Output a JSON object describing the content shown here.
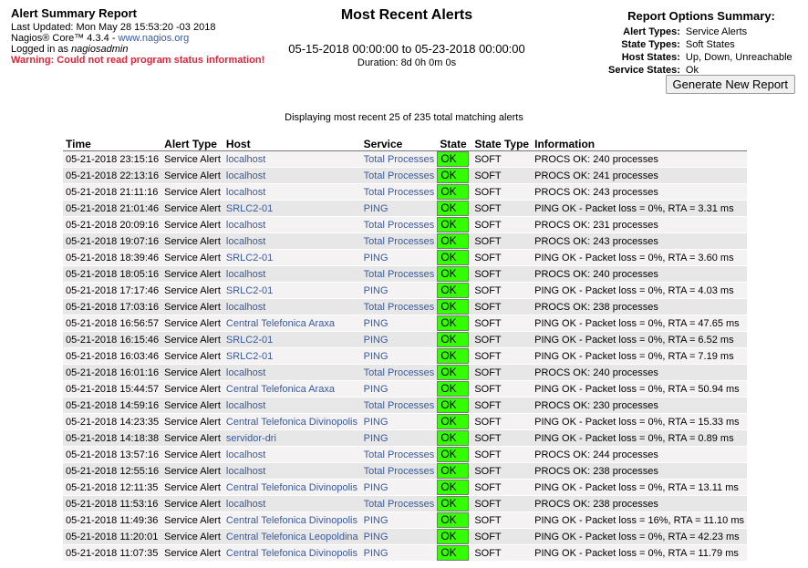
{
  "info": {
    "title": "Alert Summary Report",
    "last_updated": "Last Updated: Mon May 28 15:53:20 -03 2018",
    "product_prefix": "Nagios® Core™ 4.3.4 - ",
    "product_link": "www.nagios.org",
    "logged_prefix": "Logged in as ",
    "logged_user": "nagiosadmin",
    "warning": "Warning: Could not read program status information!"
  },
  "report": {
    "title": "Most Recent Alerts",
    "date_range": "05-15-2018 00:00:00 to 05-23-2018 00:00:00",
    "duration": "Duration: 8d 0h 0m 0s"
  },
  "options": {
    "title": "Report Options Summary:",
    "rows": [
      {
        "key": "Alert Types:",
        "value": "Service Alerts"
      },
      {
        "key": "State Types:",
        "value": "Soft States"
      },
      {
        "key": "Host States:",
        "value": "Up, Down, Unreachable"
      },
      {
        "key": "Service States:",
        "value": "Ok"
      }
    ],
    "button_label": "Generate New Report"
  },
  "summary_text": "Displaying most recent 25 of 235 total matching alerts",
  "colors": {
    "ok": "#33ff00",
    "link": "#3a5a9a",
    "warning": "#e0243a"
  },
  "table": {
    "headers": [
      "Time",
      "Alert Type",
      "Host",
      "Service",
      "State",
      "State Type",
      "Information"
    ],
    "rows": [
      {
        "time": "05-21-2018 23:15:16",
        "type": "Service Alert",
        "host": "localhost",
        "service": "Total Processes",
        "state": "OK",
        "state_type": "SOFT",
        "info": "PROCS OK: 240 processes"
      },
      {
        "time": "05-21-2018 22:13:16",
        "type": "Service Alert",
        "host": "localhost",
        "service": "Total Processes",
        "state": "OK",
        "state_type": "SOFT",
        "info": "PROCS OK: 241 processes"
      },
      {
        "time": "05-21-2018 21:11:16",
        "type": "Service Alert",
        "host": "localhost",
        "service": "Total Processes",
        "state": "OK",
        "state_type": "SOFT",
        "info": "PROCS OK: 243 processes"
      },
      {
        "time": "05-21-2018 21:01:46",
        "type": "Service Alert",
        "host": "SRLC2-01",
        "service": "PING",
        "state": "OK",
        "state_type": "SOFT",
        "info": "PING OK - Packet loss = 0%, RTA = 3.31 ms"
      },
      {
        "time": "05-21-2018 20:09:16",
        "type": "Service Alert",
        "host": "localhost",
        "service": "Total Processes",
        "state": "OK",
        "state_type": "SOFT",
        "info": "PROCS OK: 231 processes"
      },
      {
        "time": "05-21-2018 19:07:16",
        "type": "Service Alert",
        "host": "localhost",
        "service": "Total Processes",
        "state": "OK",
        "state_type": "SOFT",
        "info": "PROCS OK: 243 processes"
      },
      {
        "time": "05-21-2018 18:39:46",
        "type": "Service Alert",
        "host": "SRLC2-01",
        "service": "PING",
        "state": "OK",
        "state_type": "SOFT",
        "info": "PING OK - Packet loss = 0%, RTA = 3.60 ms"
      },
      {
        "time": "05-21-2018 18:05:16",
        "type": "Service Alert",
        "host": "localhost",
        "service": "Total Processes",
        "state": "OK",
        "state_type": "SOFT",
        "info": "PROCS OK: 240 processes"
      },
      {
        "time": "05-21-2018 17:17:46",
        "type": "Service Alert",
        "host": "SRLC2-01",
        "service": "PING",
        "state": "OK",
        "state_type": "SOFT",
        "info": "PING OK - Packet loss = 0%, RTA = 4.03 ms"
      },
      {
        "time": "05-21-2018 17:03:16",
        "type": "Service Alert",
        "host": "localhost",
        "service": "Total Processes",
        "state": "OK",
        "state_type": "SOFT",
        "info": "PROCS OK: 238 processes"
      },
      {
        "time": "05-21-2018 16:56:57",
        "type": "Service Alert",
        "host": "Central Telefonica Araxa",
        "service": "PING",
        "state": "OK",
        "state_type": "SOFT",
        "info": "PING OK - Packet loss = 0%, RTA = 47.65 ms"
      },
      {
        "time": "05-21-2018 16:15:46",
        "type": "Service Alert",
        "host": "SRLC2-01",
        "service": "PING",
        "state": "OK",
        "state_type": "SOFT",
        "info": "PING OK - Packet loss = 0%, RTA = 6.52 ms"
      },
      {
        "time": "05-21-2018 16:03:46",
        "type": "Service Alert",
        "host": "SRLC2-01",
        "service": "PING",
        "state": "OK",
        "state_type": "SOFT",
        "info": "PING OK - Packet loss = 0%, RTA = 7.19 ms"
      },
      {
        "time": "05-21-2018 16:01:16",
        "type": "Service Alert",
        "host": "localhost",
        "service": "Total Processes",
        "state": "OK",
        "state_type": "SOFT",
        "info": "PROCS OK: 240 processes"
      },
      {
        "time": "05-21-2018 15:44:57",
        "type": "Service Alert",
        "host": "Central Telefonica Araxa",
        "service": "PING",
        "state": "OK",
        "state_type": "SOFT",
        "info": "PING OK - Packet loss = 0%, RTA = 50.94 ms"
      },
      {
        "time": "05-21-2018 14:59:16",
        "type": "Service Alert",
        "host": "localhost",
        "service": "Total Processes",
        "state": "OK",
        "state_type": "SOFT",
        "info": "PROCS OK: 230 processes"
      },
      {
        "time": "05-21-2018 14:23:35",
        "type": "Service Alert",
        "host": "Central Telefonica Divinopolis",
        "service": "PING",
        "state": "OK",
        "state_type": "SOFT",
        "info": "PING OK - Packet loss = 0%, RTA = 15.33 ms"
      },
      {
        "time": "05-21-2018 14:18:38",
        "type": "Service Alert",
        "host": "servidor-dri",
        "service": "PING",
        "state": "OK",
        "state_type": "SOFT",
        "info": "PING OK - Packet loss = 0%, RTA = 0.89 ms"
      },
      {
        "time": "05-21-2018 13:57:16",
        "type": "Service Alert",
        "host": "localhost",
        "service": "Total Processes",
        "state": "OK",
        "state_type": "SOFT",
        "info": "PROCS OK: 244 processes"
      },
      {
        "time": "05-21-2018 12:55:16",
        "type": "Service Alert",
        "host": "localhost",
        "service": "Total Processes",
        "state": "OK",
        "state_type": "SOFT",
        "info": "PROCS OK: 238 processes"
      },
      {
        "time": "05-21-2018 12:11:35",
        "type": "Service Alert",
        "host": "Central Telefonica Divinopolis",
        "service": "PING",
        "state": "OK",
        "state_type": "SOFT",
        "info": "PING OK - Packet loss = 0%, RTA = 13.11 ms"
      },
      {
        "time": "05-21-2018 11:53:16",
        "type": "Service Alert",
        "host": "localhost",
        "service": "Total Processes",
        "state": "OK",
        "state_type": "SOFT",
        "info": "PROCS OK: 238 processes"
      },
      {
        "time": "05-21-2018 11:49:36",
        "type": "Service Alert",
        "host": "Central Telefonica Divinopolis",
        "service": "PING",
        "state": "OK",
        "state_type": "SOFT",
        "info": "PING OK - Packet loss = 16%, RTA = 11.10 ms"
      },
      {
        "time": "05-21-2018 11:20:01",
        "type": "Service Alert",
        "host": "Central Telefonica Leopoldina",
        "service": "PING",
        "state": "OK",
        "state_type": "SOFT",
        "info": "PING OK - Packet loss = 0%, RTA = 42.23 ms"
      },
      {
        "time": "05-21-2018 11:07:35",
        "type": "Service Alert",
        "host": "Central Telefonica Divinopolis",
        "service": "PING",
        "state": "OK",
        "state_type": "SOFT",
        "info": "PING OK - Packet loss = 0%, RTA = 11.79 ms"
      }
    ]
  }
}
